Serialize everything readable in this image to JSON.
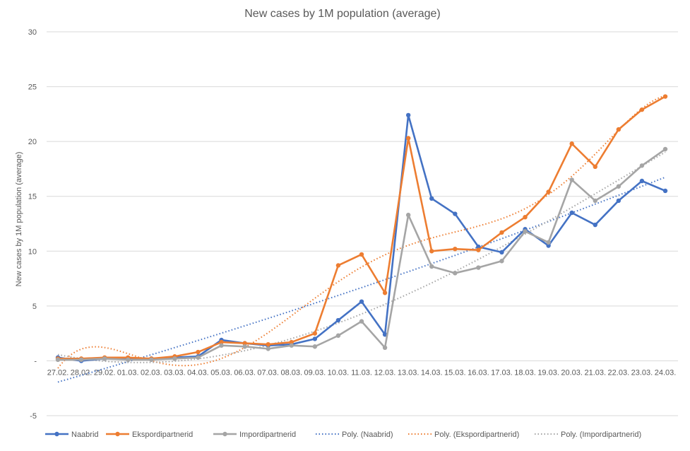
{
  "chart_data": {
    "type": "line",
    "title": "New cases by  1M population (average)",
    "xlabel": "",
    "ylabel": "New cases by 1M population (average)",
    "ylim": [
      -5,
      30
    ],
    "yticks": [
      -5,
      0,
      5,
      10,
      15,
      20,
      25,
      30
    ],
    "ytick_labels": [
      "-5",
      "-",
      "5",
      "10",
      "15",
      "20",
      "25",
      "30"
    ],
    "grid": true,
    "legend_position": "bottom",
    "categories": [
      "27.02.",
      "28.02.",
      "29.02.",
      "01.03.",
      "02.03.",
      "03.03.",
      "04.03.",
      "05.03.",
      "06.03.",
      "07.03.",
      "08.03.",
      "09.03.",
      "10.03.",
      "11.03.",
      "12.03.",
      "13.03.",
      "14.03.",
      "15.03.",
      "16.03.",
      "17.03.",
      "18.03.",
      "19.03.",
      "20.03.",
      "21.03.",
      "22.03.",
      "23.03.",
      "24.03."
    ],
    "series": [
      {
        "name": "Naabrid",
        "color": "#4472C4",
        "values": [
          0.3,
          0.0,
          0.2,
          0.2,
          0.2,
          0.3,
          0.4,
          1.9,
          1.6,
          1.4,
          1.5,
          2.0,
          3.7,
          5.4,
          2.4,
          22.4,
          14.8,
          13.4,
          10.4,
          9.9,
          12.0,
          10.5,
          13.5,
          12.4,
          14.6,
          16.4,
          15.5
        ]
      },
      {
        "name": "Ekspordipartnerid",
        "color": "#ED7D31",
        "values": [
          0.2,
          0.2,
          0.3,
          0.3,
          0.2,
          0.4,
          0.8,
          1.7,
          1.6,
          1.5,
          1.7,
          2.5,
          8.7,
          9.7,
          6.2,
          20.3,
          10.0,
          10.2,
          10.1,
          11.7,
          13.1,
          15.4,
          19.8,
          17.7,
          21.1,
          22.9,
          24.1
        ]
      },
      {
        "name": "Impordipartnerid",
        "color": "#A5A5A5",
        "values": [
          0.1,
          0.1,
          0.2,
          0.1,
          0.1,
          0.2,
          0.3,
          1.4,
          1.3,
          1.1,
          1.4,
          1.3,
          2.3,
          3.6,
          1.2,
          13.3,
          8.6,
          8.0,
          8.5,
          9.1,
          11.8,
          10.8,
          16.5,
          14.6,
          15.9,
          17.8,
          19.3
        ]
      }
    ],
    "trendlines": [
      {
        "name": "Poly. (Naabrid)",
        "series": 0,
        "type": "polynomial",
        "order": 2
      },
      {
        "name": "Poly. (Ekspordipartnerid)",
        "series": 1,
        "type": "polynomial",
        "order": 6
      },
      {
        "name": "Poly. (Impordipartnerid)",
        "series": 2,
        "type": "polynomial",
        "order": 3
      }
    ]
  }
}
